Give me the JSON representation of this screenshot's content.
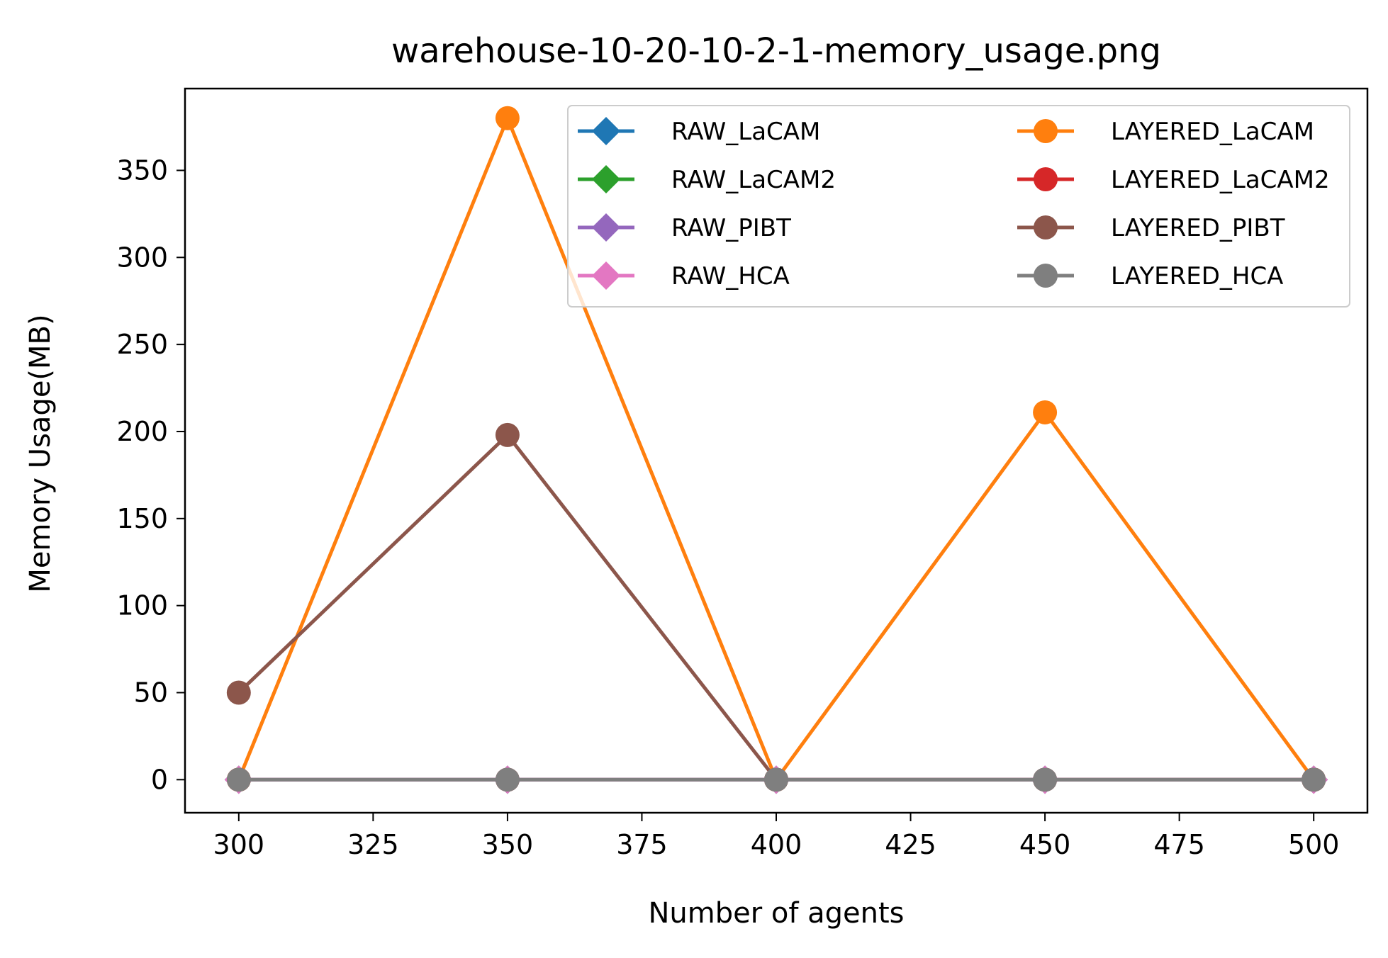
{
  "chart_data": {
    "type": "line",
    "title": "warehouse-10-20-10-2-1-memory_usage.png",
    "xlabel": "Number of agents",
    "ylabel": "Memory Usage(MB)",
    "x": [
      300,
      350,
      400,
      450,
      500
    ],
    "xlim": [
      290,
      510
    ],
    "ylim": [
      -19,
      397
    ],
    "xticks": [
      300,
      325,
      350,
      375,
      400,
      425,
      450,
      475,
      500
    ],
    "yticks": [
      0,
      50,
      100,
      150,
      200,
      250,
      300,
      350
    ],
    "grid": false,
    "legend_position": "top-right",
    "series": [
      {
        "name": "RAW_LaCAM",
        "color": "#1f77b4",
        "marker": "diamond",
        "values": [
          0,
          0,
          0,
          0,
          0
        ]
      },
      {
        "name": "LAYERED_LaCAM",
        "color": "#ff7f0e",
        "marker": "circle",
        "values": [
          0,
          380,
          0,
          211,
          0
        ]
      },
      {
        "name": "RAW_LaCAM2",
        "color": "#2ca02c",
        "marker": "diamond",
        "values": [
          0,
          0,
          0,
          0,
          0
        ]
      },
      {
        "name": "LAYERED_LaCAM2",
        "color": "#d62728",
        "marker": "circle",
        "values": [
          0,
          0,
          0,
          0,
          0
        ]
      },
      {
        "name": "RAW_PIBT",
        "color": "#9467bd",
        "marker": "diamond",
        "values": [
          0,
          0,
          0,
          0,
          0
        ]
      },
      {
        "name": "LAYERED_PIBT",
        "color": "#8c564b",
        "marker": "circle",
        "values": [
          50,
          198,
          0,
          0,
          0
        ]
      },
      {
        "name": "RAW_HCA",
        "color": "#e377c2",
        "marker": "diamond",
        "values": [
          0,
          0,
          0,
          0,
          0
        ]
      },
      {
        "name": "LAYERED_HCA",
        "color": "#7f7f7f",
        "marker": "circle",
        "values": [
          0,
          0,
          0,
          0,
          0
        ]
      }
    ]
  }
}
